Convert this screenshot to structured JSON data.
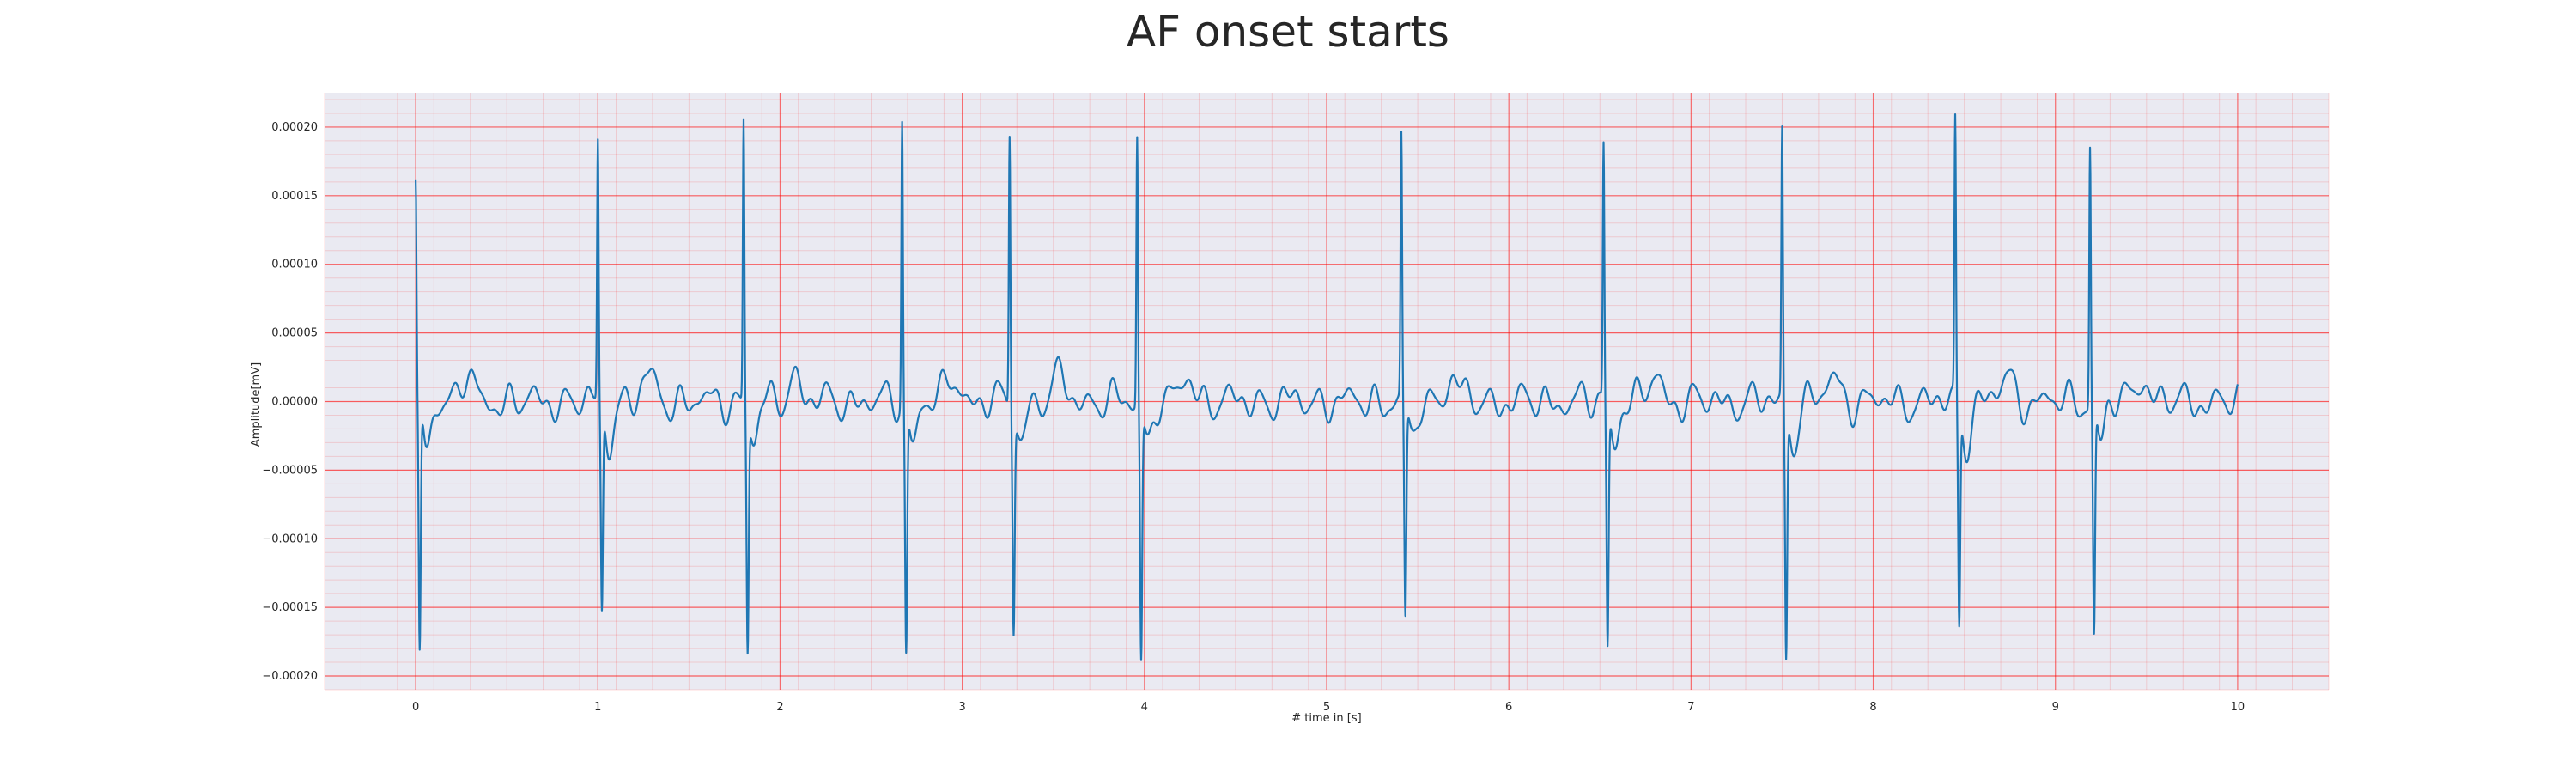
{
  "chart_data": {
    "type": "line",
    "title": "AF onset starts",
    "xlabel": "# time in [s]",
    "ylabel": "Amplitude[mV]",
    "xlim": [
      -0.5,
      10.5
    ],
    "ylim": [
      -0.00021,
      0.000225
    ],
    "xticks": [
      0,
      1,
      2,
      3,
      4,
      5,
      6,
      7,
      8,
      9,
      10
    ],
    "xtick_labels": [
      "0",
      "1",
      "2",
      "3",
      "4",
      "5",
      "6",
      "7",
      "8",
      "9",
      "10"
    ],
    "yticks": [
      -0.0002,
      -0.00015,
      -0.0001,
      -5e-05,
      0,
      5e-05,
      0.0001,
      0.00015,
      0.0002
    ],
    "ytick_labels": [
      "−0.00020",
      "−0.00015",
      "−0.00010",
      "−0.00005",
      "0.00000",
      "0.00005",
      "0.00010",
      "0.00015",
      "0.00020"
    ],
    "grid": {
      "major": true,
      "minor": true,
      "color": "#ff0000"
    },
    "background": "#eaeaf2",
    "series": [
      {
        "color": "#1f77b4",
        "x_step": 0.01,
        "x": [
          0,
          10
        ],
        "beats": [
          {
            "t": 0.0,
            "r": 0.00015,
            "s": -0.000188
          },
          {
            "t": 1.0,
            "r": 0.000187,
            "s": -0.000152
          },
          {
            "t": 1.8,
            "r": 0.000206,
            "s": -0.000173
          },
          {
            "t": 2.67,
            "r": 0.000206,
            "s": -0.000179
          },
          {
            "t": 3.26,
            "r": 0.0002,
            "s": -0.000155
          },
          {
            "t": 3.96,
            "r": 0.000196,
            "s": -0.000182
          },
          {
            "t": 5.41,
            "r": 0.000191,
            "s": -0.000156
          },
          {
            "t": 6.52,
            "r": 0.000186,
            "s": -0.000174
          },
          {
            "t": 7.5,
            "r": 0.000195,
            "s": -0.000183
          },
          {
            "t": 8.45,
            "r": 0.0002,
            "s": -0.00016
          },
          {
            "t": 9.19,
            "r": 0.000189,
            "s": -0.000166
          }
        ],
        "baseline_amplitude": 2e-05
      }
    ]
  }
}
